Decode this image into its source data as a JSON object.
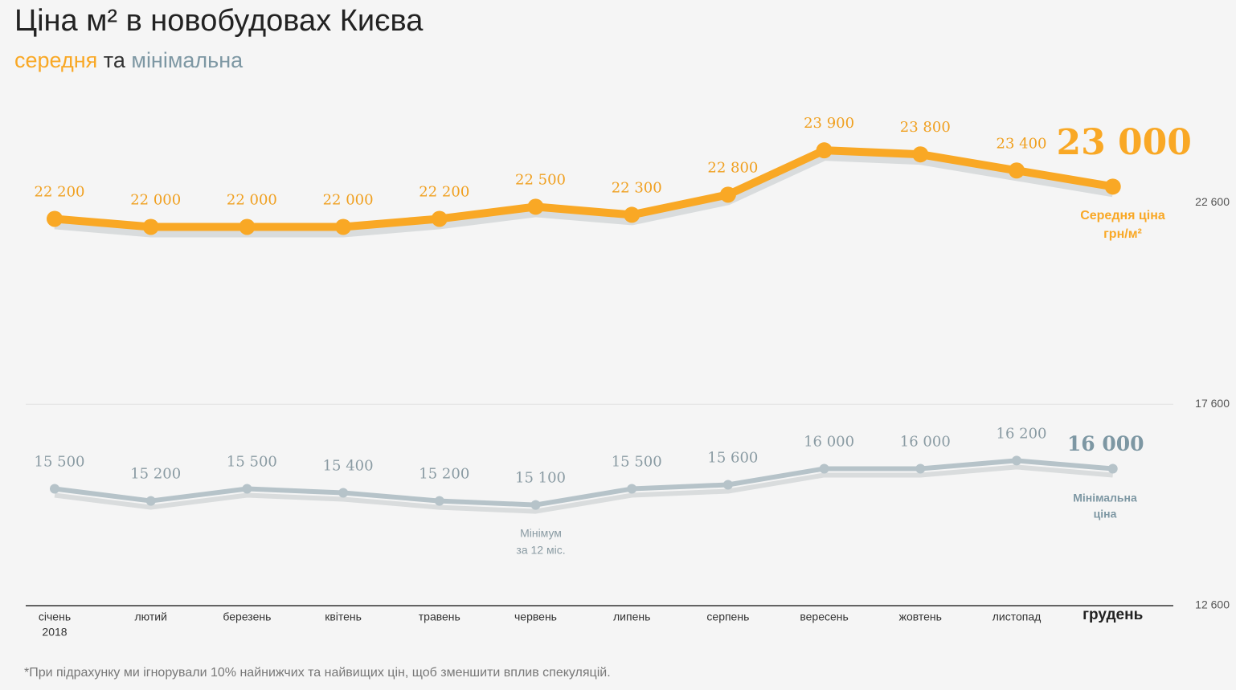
{
  "chart_data": {
    "type": "line",
    "title": "Ціна м² в новобудовах Києва",
    "subtitle": [
      "середня",
      "та",
      "мінімальна"
    ],
    "categories": [
      "січень",
      "лютий",
      "березень",
      "квітень",
      "травень",
      "червень",
      "липень",
      "серпень",
      "вересень",
      "жовтень",
      "листопад",
      "грудень"
    ],
    "x_first_year": "2018",
    "series": [
      {
        "name": "середня",
        "color": "#f9a825",
        "values": [
          22200,
          22000,
          22000,
          22000,
          22200,
          22500,
          22300,
          22800,
          23900,
          23800,
          23400,
          23000
        ],
        "value_labels": [
          "22 200",
          "22 000",
          "22 000",
          "22 000",
          "22 200",
          "22 500",
          "22 300",
          "22 800",
          "23 900",
          "23 800",
          "23 400",
          "23 000"
        ]
      },
      {
        "name": "мінімальна",
        "color": "#b6c3c9",
        "values": [
          15500,
          15200,
          15500,
          15400,
          15200,
          15100,
          15500,
          15600,
          16000,
          16000,
          16200,
          16000
        ],
        "value_labels": [
          "15 500",
          "15 200",
          "15 500",
          "15 400",
          "15 200",
          "15 100",
          "15 500",
          "15 600",
          "16 000",
          "16 000",
          "16 200",
          "16 000"
        ]
      }
    ],
    "ylim": [
      12600,
      25000
    ],
    "yticks": [
      {
        "value": 12600,
        "label": "12 600"
      },
      {
        "value": 17600,
        "label": "17 600"
      },
      {
        "value": 22600,
        "label": "22 600"
      }
    ],
    "annotations": {
      "avg_label": [
        "Середня ціна",
        "грн/м²"
      ],
      "min_label": [
        "Мінімальна",
        "ціна"
      ],
      "min_note": [
        "Мінімум",
        "за 12 міс."
      ]
    },
    "footnote": "*При підрахунку ми ігнорували 10% найнижчих та найвищих цін, щоб зменшити вплив спекуляцій."
  }
}
